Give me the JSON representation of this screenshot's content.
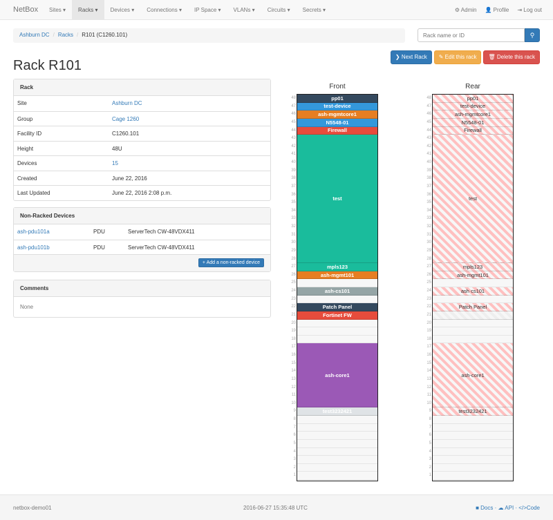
{
  "nav": {
    "brand": "NetBox",
    "menu": [
      "Sites",
      "Racks",
      "Devices",
      "Connections",
      "IP Space",
      "VLANs",
      "Circuits",
      "Secrets"
    ],
    "active": "Racks",
    "user": [
      {
        "icon": "gear-icon",
        "label": "Admin"
      },
      {
        "icon": "user-icon",
        "label": "Profile"
      },
      {
        "icon": "logout-icon",
        "label": "Log out"
      }
    ]
  },
  "breadcrumb": [
    "Ashburn DC",
    "Racks",
    "R101 (C1260.101)"
  ],
  "search": {
    "placeholder": "Rack name or ID",
    "icon": "search-icon"
  },
  "actions": {
    "next": "Next Rack",
    "edit": "Edit this rack",
    "delete": "Delete this rack"
  },
  "title": "Rack R101",
  "rack_panel": {
    "heading": "Rack",
    "rows": [
      {
        "k": "Site",
        "v": "Ashburn DC",
        "link": true
      },
      {
        "k": "Group",
        "v": "Cage 1260",
        "link": true
      },
      {
        "k": "Facility ID",
        "v": "C1260.101"
      },
      {
        "k": "Height",
        "v": "48U"
      },
      {
        "k": "Devices",
        "v": "15",
        "link": true
      },
      {
        "k": "Created",
        "v": "June 22, 2016"
      },
      {
        "k": "Last Updated",
        "v": "June 22, 2016 2:08 p.m."
      }
    ]
  },
  "nonracked": {
    "heading": "Non-Racked Devices",
    "rows": [
      {
        "name": "ash-pdu101a",
        "role": "PDU",
        "type": "ServerTech CW-48VDX411"
      },
      {
        "name": "ash-pdu101b",
        "role": "PDU",
        "type": "ServerTech CW-48VDX411"
      }
    ],
    "add_label": "Add a non-racked device"
  },
  "comments": {
    "heading": "Comments",
    "body": "None"
  },
  "elevation": {
    "height": 48,
    "front_label": "Front",
    "rear_label": "Rear",
    "devices": [
      {
        "name": "pp01",
        "top": 48,
        "size": 1,
        "color": "#34495e"
      },
      {
        "name": "test-device",
        "top": 47,
        "size": 1,
        "color": "#3498db"
      },
      {
        "name": "ash-mgmtcore1",
        "top": 46,
        "size": 1,
        "color": "#e67e22"
      },
      {
        "name": "N5548-01",
        "top": 45,
        "size": 1,
        "color": "#3498db"
      },
      {
        "name": "Firewall",
        "top": 44,
        "size": 1,
        "color": "#e74c3c"
      },
      {
        "name": "test",
        "top": 43,
        "size": 16,
        "color": "#1abc9c"
      },
      {
        "name": "mpls123",
        "top": 27,
        "size": 1,
        "color": "#1abc9c"
      },
      {
        "name": "ash-mgmt101",
        "top": 26,
        "size": 1,
        "color": "#e67e22"
      },
      {
        "name": "ash-cs101",
        "top": 24,
        "size": 1,
        "color": "#95a5a6",
        "rear": "ash cs101"
      },
      {
        "name": "Patch Panel",
        "top": 22,
        "size": 1,
        "color": "#34495e"
      },
      {
        "name": "Fortinet FW",
        "top": 21,
        "size": 1,
        "color": "#e74c3c",
        "rear_other": true
      },
      {
        "name": "ash-core1",
        "top": 17,
        "size": 8,
        "color": "#9b59b6"
      },
      {
        "name": "test3232421",
        "top": 9,
        "size": 1,
        "color": "#dfe3e6"
      }
    ]
  },
  "footer": {
    "host": "netbox-demo01",
    "time": "2016-06-27 15:35:48 UTC",
    "links": [
      "Docs",
      "API",
      "Code"
    ]
  }
}
